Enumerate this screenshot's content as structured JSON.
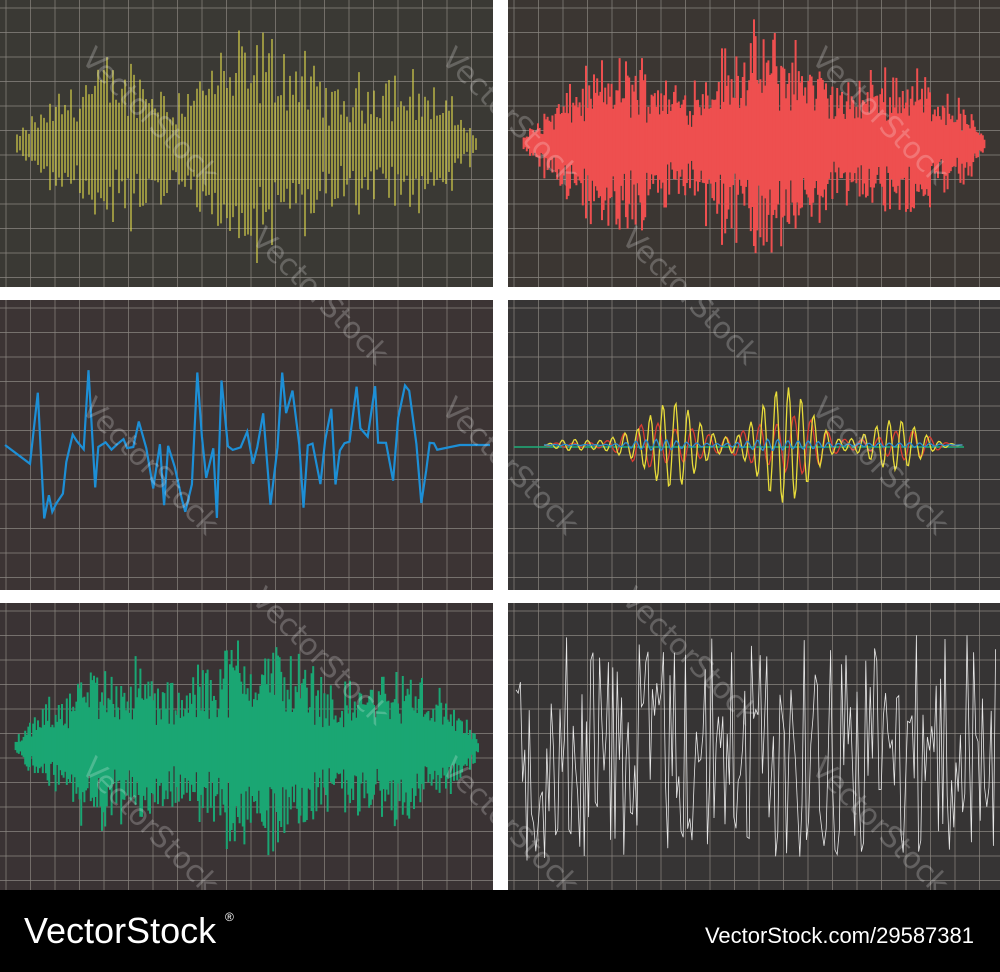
{
  "watermark": "VectorStock",
  "footer": {
    "brand": "VectorStock",
    "registered": "®",
    "url": "VectorStock.com/29587381"
  }
}
